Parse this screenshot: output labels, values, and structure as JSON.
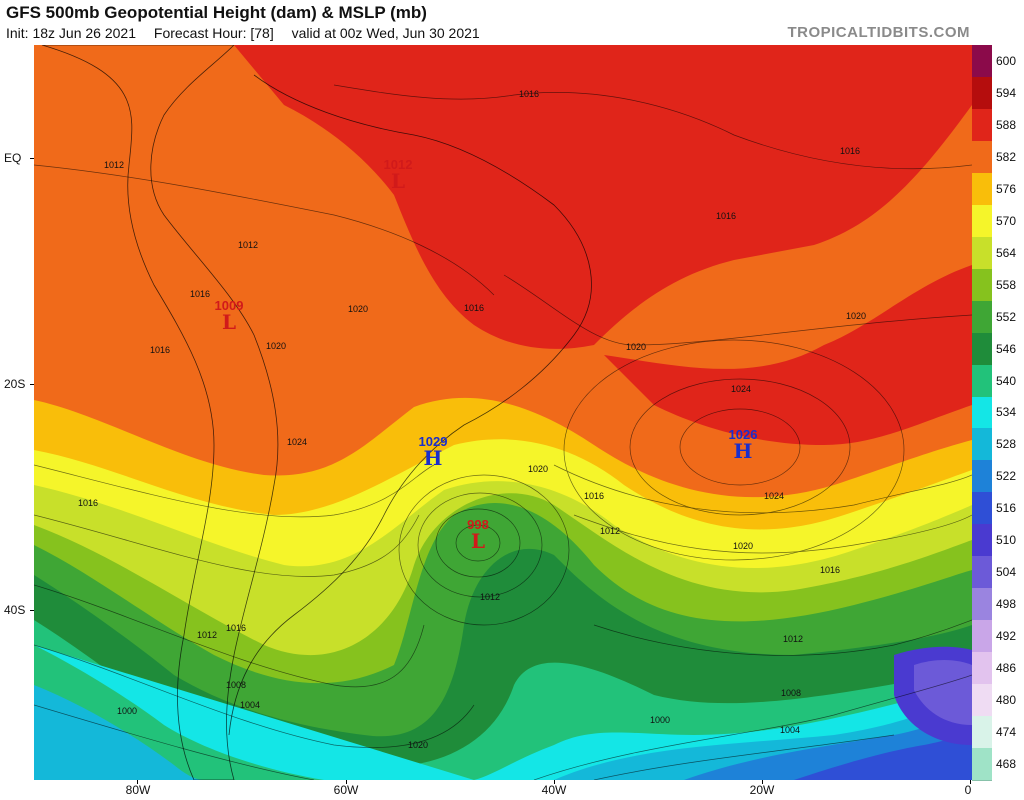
{
  "header": {
    "title": "GFS 500mb Geopotential Height (dam) & MSLP (mb)",
    "init": "Init: 18z Jun 26 2021",
    "forecast_hour": "Forecast Hour: [78]",
    "valid": "valid at 00z Wed, Jun 30 2021",
    "brand": "TROPICALTIDBITS.COM"
  },
  "legend": {
    "labels": [
      "600",
      "594",
      "588",
      "582",
      "576",
      "570",
      "564",
      "558",
      "552",
      "546",
      "540",
      "534",
      "528",
      "522",
      "516",
      "510",
      "504",
      "498",
      "492",
      "486",
      "480",
      "474",
      "468"
    ],
    "colors": [
      "#8b0a4a",
      "#b50d0d",
      "#e0251a",
      "#f06a1a",
      "#f9be0a",
      "#f5f52a",
      "#c8e02a",
      "#86c21e",
      "#3fa635",
      "#1f8c3a",
      "#22c27a",
      "#14e6e6",
      "#14b8d9",
      "#1e82d8",
      "#2f4fd6",
      "#4a3ad0",
      "#6c5ad8",
      "#9a84e0",
      "#c9a6e8",
      "#e2c3ee",
      "#efdcf3",
      "#d9f3e9",
      "#9fe3c7"
    ]
  },
  "axes": {
    "y_labels": [
      "EQ",
      "20S",
      "40S"
    ],
    "x_labels": [
      "80W",
      "60W",
      "40W",
      "20W",
      "0"
    ]
  },
  "pressure_systems": [
    {
      "type": "H",
      "value": "1029"
    },
    {
      "type": "H",
      "value": "1026"
    },
    {
      "type": "L",
      "value": "998"
    },
    {
      "type": "L",
      "value": "1009"
    },
    {
      "type": "L",
      "value": "1012"
    }
  ],
  "isobar_labels": [
    "1016",
    "1016",
    "1016",
    "1012",
    "1012",
    "1016",
    "1020",
    "1020",
    "1016",
    "1020",
    "1020",
    "1024",
    "1024",
    "1024",
    "1016",
    "1020",
    "1016",
    "1012",
    "1016",
    "1020",
    "1016",
    "1012",
    "1012",
    "1012",
    "1016",
    "1008",
    "1004",
    "1000",
    "1008",
    "1004",
    "1000",
    "1020"
  ],
  "colors": {
    "high_label": "#1a2ecc",
    "low_label": "#d11a1a",
    "brand": "#8a8a8a"
  }
}
